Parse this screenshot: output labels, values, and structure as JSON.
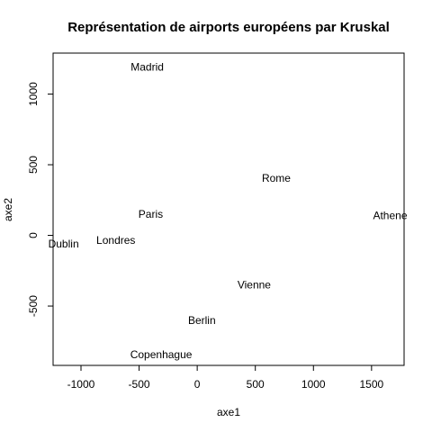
{
  "chart_data": {
    "type": "scatter",
    "title": "Représentation de airports européens par Kruskal",
    "xlabel": "axe1",
    "ylabel": "axe2",
    "xlim": [
      -1240,
      1780
    ],
    "ylim": [
      -920,
      1290
    ],
    "x_ticks": [
      -1000,
      -500,
      0,
      500,
      1000,
      1500
    ],
    "x_tick_labels": [
      "-1000",
      "-500",
      "0",
      "500",
      "1000",
      "1500"
    ],
    "y_ticks": [
      -500,
      0,
      500,
      1000
    ],
    "y_tick_labels": [
      "-500",
      "0",
      "500",
      "1000"
    ],
    "grid": false,
    "points": [
      {
        "label": "Madrid",
        "x": -430,
        "y": 1190
      },
      {
        "label": "Rome",
        "x": 680,
        "y": 405
      },
      {
        "label": "Paris",
        "x": -400,
        "y": 150
      },
      {
        "label": "Athene",
        "x": 1660,
        "y": 140
      },
      {
        "label": "Dublin",
        "x": -1150,
        "y": -60
      },
      {
        "label": "Londres",
        "x": -700,
        "y": -35
      },
      {
        "label": "Vienne",
        "x": 490,
        "y": -350
      },
      {
        "label": "Berlin",
        "x": 40,
        "y": -600
      },
      {
        "label": "Copenhague",
        "x": -310,
        "y": -845
      }
    ]
  }
}
